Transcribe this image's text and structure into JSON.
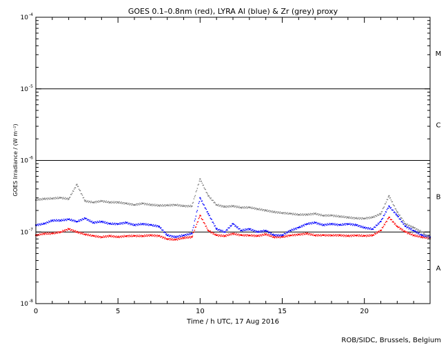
{
  "chart_data": {
    "type": "scatter",
    "title": "GOES 0.1–0.8nm (red), LYRA Al (blue) & Zr (grey) proxy",
    "xlabel": "Time / h UTC, 17 Aug 2016",
    "ylabel": "GOES Irradiance / (W m⁻²)",
    "xlim": [
      0,
      24
    ],
    "ylim": [
      1e-08,
      0.0001
    ],
    "yscale": "log",
    "x_ticks": [
      0,
      5,
      10,
      15,
      20
    ],
    "y_ticks": [
      {
        "value": 1e-08,
        "mant": "10",
        "exp": "-8"
      },
      {
        "value": 1e-07,
        "mant": "10",
        "exp": "-7"
      },
      {
        "value": 1e-06,
        "mant": "10",
        "exp": "-6"
      },
      {
        "value": 1e-05,
        "mant": "10",
        "exp": "-5"
      },
      {
        "value": 0.0001,
        "mant": "10",
        "exp": "-4"
      }
    ],
    "flare_class_lines": [
      1e-07,
      1e-06,
      1e-05
    ],
    "flare_classes": [
      {
        "label": "A",
        "y": 3.16e-08
      },
      {
        "label": "B",
        "y": 3.16e-07
      },
      {
        "label": "C",
        "y": 3.16e-06
      },
      {
        "label": "M",
        "y": 3.16e-05
      }
    ],
    "grid": false,
    "series": [
      {
        "color": "#ff0000",
        "x": [
          0,
          0.5,
          1,
          1.5,
          2,
          2.5,
          3,
          3.5,
          4,
          4.5,
          5,
          5.5,
          6,
          6.5,
          7,
          7.5,
          8,
          8.5,
          9,
          9.5,
          10,
          10.5,
          11,
          11.5,
          12,
          12.5,
          13,
          13.5,
          14,
          14.5,
          15,
          15.5,
          16,
          16.5,
          17,
          17.5,
          18,
          18.5,
          19,
          19.5,
          20,
          20.5,
          21,
          21.5,
          22,
          22.5,
          23,
          23.5,
          24
        ],
        "y": [
          9e-08,
          9.5e-08,
          9.5e-08,
          1e-07,
          1.1e-07,
          1e-07,
          9.3e-08,
          8.8e-08,
          8.5e-08,
          8.8e-08,
          8.5e-08,
          8.8e-08,
          8.8e-08,
          8.8e-08,
          9e-08,
          8.8e-08,
          8e-08,
          7.8e-08,
          8.3e-08,
          8.5e-08,
          1.7e-07,
          1.05e-07,
          9e-08,
          8.8e-08,
          9.5e-08,
          9e-08,
          9e-08,
          8.8e-08,
          9.3e-08,
          8.5e-08,
          8.5e-08,
          9e-08,
          9.2e-08,
          9.5e-08,
          9e-08,
          9e-08,
          9e-08,
          9e-08,
          8.8e-08,
          9e-08,
          8.8e-08,
          9e-08,
          1.05e-07,
          1.6e-07,
          1.2e-07,
          1e-07,
          9e-08,
          8.5e-08,
          8.2e-08
        ]
      },
      {
        "color": "#0000ff",
        "x": [
          0,
          0.5,
          1,
          1.5,
          2,
          2.5,
          3,
          3.5,
          4,
          4.5,
          5,
          5.5,
          6,
          6.5,
          7,
          7.5,
          8,
          8.5,
          9,
          9.5,
          10,
          10.5,
          11,
          11.5,
          12,
          12.5,
          13,
          13.5,
          14,
          14.5,
          15,
          15.5,
          16,
          16.5,
          17,
          17.5,
          18,
          18.5,
          19,
          19.5,
          20,
          20.5,
          21,
          21.5,
          22,
          22.5,
          23,
          23.5,
          24
        ],
        "y": [
          1.25e-07,
          1.3e-07,
          1.45e-07,
          1.45e-07,
          1.5e-07,
          1.4e-07,
          1.55e-07,
          1.35e-07,
          1.4e-07,
          1.3e-07,
          1.3e-07,
          1.35e-07,
          1.25e-07,
          1.3e-07,
          1.25e-07,
          1.2e-07,
          9e-08,
          8.5e-08,
          9e-08,
          9.5e-08,
          3e-07,
          1.8e-07,
          1.1e-07,
          1e-07,
          1.3e-07,
          1.05e-07,
          1.1e-07,
          1e-07,
          1.05e-07,
          9e-08,
          9e-08,
          1.05e-07,
          1.15e-07,
          1.3e-07,
          1.35e-07,
          1.25e-07,
          1.3e-07,
          1.25e-07,
          1.3e-07,
          1.25e-07,
          1.15e-07,
          1.1e-07,
          1.4e-07,
          2.3e-07,
          1.7e-07,
          1.2e-07,
          1.05e-07,
          9e-08,
          8.5e-08
        ]
      },
      {
        "color": "#808080",
        "x": [
          0,
          0.5,
          1,
          1.5,
          2,
          2.5,
          3,
          3.5,
          4,
          4.5,
          5,
          5.5,
          6,
          6.5,
          7,
          7.5,
          8,
          8.5,
          9,
          9.5,
          10,
          10.5,
          11,
          11.5,
          12,
          12.5,
          13,
          13.5,
          14,
          14.5,
          15,
          15.5,
          16,
          16.5,
          17,
          17.5,
          18,
          18.5,
          19,
          19.5,
          20,
          20.5,
          21,
          21.5,
          22,
          22.5,
          23,
          23.5,
          24
        ],
        "y": [
          2.8e-07,
          2.9e-07,
          2.95e-07,
          3e-07,
          2.9e-07,
          4.6e-07,
          2.7e-07,
          2.6e-07,
          2.7e-07,
          2.6e-07,
          2.6e-07,
          2.5e-07,
          2.4e-07,
          2.5e-07,
          2.4e-07,
          2.35e-07,
          2.35e-07,
          2.4e-07,
          2.3e-07,
          2.3e-07,
          5.5e-07,
          3.2e-07,
          2.4e-07,
          2.25e-07,
          2.3e-07,
          2.2e-07,
          2.2e-07,
          2.1e-07,
          2e-07,
          1.9e-07,
          1.85e-07,
          1.8e-07,
          1.75e-07,
          1.75e-07,
          1.8e-07,
          1.7e-07,
          1.7e-07,
          1.65e-07,
          1.6e-07,
          1.55e-07,
          1.55e-07,
          1.6e-07,
          1.8e-07,
          3.2e-07,
          1.9e-07,
          1.3e-07,
          1.15e-07,
          1e-07,
          8e-08
        ]
      }
    ]
  },
  "footer": {
    "credit": "ROB/SIDC, Brussels, Belgium"
  }
}
